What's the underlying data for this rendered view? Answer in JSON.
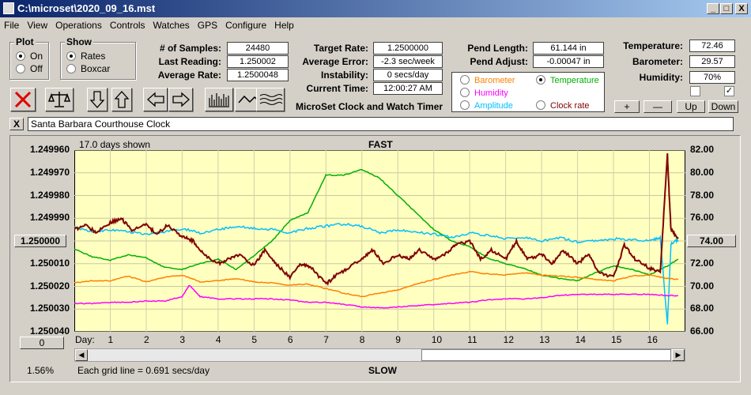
{
  "window": {
    "title": "C:\\microset\\2020_09_16.mst",
    "min": "_",
    "max": "□",
    "close": "X"
  },
  "menu": [
    "File",
    "View",
    "Operations",
    "Controls",
    "Watches",
    "GPS",
    "Configure",
    "Help"
  ],
  "plot_group": {
    "title": "Plot",
    "options": [
      "On",
      "Off"
    ],
    "selected": "On"
  },
  "show_group": {
    "title": "Show",
    "options": [
      "Rates",
      "Boxcar"
    ],
    "selected": "Rates"
  },
  "stats": {
    "samples_label": "# of Samples:",
    "samples": "24480",
    "last_label": "Last Reading:",
    "last": "1.250002",
    "avg_label": "Average Rate:",
    "avg": "1.2500048",
    "target_label": "Target Rate:",
    "target": "1.2500000",
    "avgerr_label": "Average Error:",
    "avgerr": "-2.3 sec/week",
    "instab_label": "Instability:",
    "instab": "0 secs/day",
    "time_label": "Current Time:",
    "time": "12:00:27 AM",
    "pendlen_label": "Pend Length:",
    "pendlen": "61.144 in",
    "pendadj_label": "Pend Adjust:",
    "pendadj": "-0.00047 in",
    "temp_label": "Temperature:",
    "temp": "72.46",
    "baro_label": "Barometer:",
    "baro": "29.57",
    "hum_label": "Humidity:",
    "hum": "70%"
  },
  "app_caption": "MicroSet Clock and Watch Timer",
  "sensors": {
    "barometer": "Barometer",
    "humidity": "Humidity",
    "amplitude": "Amplitude",
    "temperature": "Temperature",
    "clock_rate": "Clock rate",
    "selected": "Temperature"
  },
  "small_buttons": {
    "plus": "+",
    "minus": "—",
    "up": "Up",
    "down": "Down"
  },
  "checkboxes": [
    false,
    true
  ],
  "close_x": "X",
  "clock_name": "Santa Barbara Courthouse Clock",
  "colors": {
    "barometer": "#ff8000",
    "humidity": "#ff00ff",
    "amplitude": "#00c0ff",
    "temperature": "#00b000",
    "rate": "#800000",
    "plot_bg": "#ffffc0"
  },
  "chart_data": {
    "type": "line",
    "header_left": "17.0 days shown",
    "header_center": "FAST",
    "footer_left": "Each grid line = 0.691 secs/day",
    "footer_center": "SLOW",
    "footer_pct": "1.56%",
    "left_button": "1.250000",
    "right_button": "74.00",
    "zero_button": "0",
    "x_label": "Day:",
    "x_ticks": [
      "1",
      "2",
      "3",
      "4",
      "5",
      "6",
      "7",
      "8",
      "9",
      "10",
      "11",
      "12",
      "13",
      "14",
      "15",
      "16"
    ],
    "y_left_ticks": [
      "1.249960",
      "1.249970",
      "1.249980",
      "1.249990",
      "1.250000",
      "1.250010",
      "1.250020",
      "1.250030",
      "1.250040"
    ],
    "y_right_ticks": [
      "82.00",
      "80.00",
      "78.00",
      "76.00",
      "74.00",
      "72.00",
      "70.00",
      "68.00",
      "66.00"
    ],
    "xlim": [
      0,
      17
    ],
    "ylim_left": [
      1.25004,
      1.24996
    ],
    "ylim_right": [
      66,
      82
    ],
    "grid": true,
    "series": [
      {
        "key": "temperature",
        "axis": "right",
        "x": [
          0,
          0.5,
          1,
          1.5,
          2,
          2.5,
          3,
          3.5,
          4,
          4.5,
          5,
          5.5,
          6,
          6.5,
          7,
          7.5,
          8,
          8.5,
          9,
          9.5,
          10,
          10.5,
          11,
          11.5,
          12,
          12.5,
          13,
          13.5,
          14,
          14.5,
          15,
          15.5,
          16,
          16.5,
          16.8
        ],
        "y": [
          73.3,
          72.6,
          72.3,
          72.8,
          72.5,
          71.7,
          71.5,
          72.0,
          72.4,
          71.5,
          72.7,
          74.0,
          75.8,
          76.5,
          79.8,
          79.8,
          80.3,
          79.5,
          78.0,
          76.5,
          75.0,
          74.0,
          73.5,
          72.5,
          72.0,
          71.6,
          71.0,
          70.7,
          70.5,
          71.2,
          71.8,
          71.5,
          71.0,
          71.8,
          72.4
        ]
      },
      {
        "key": "amplitude",
        "axis": "right",
        "x": [
          0,
          0.5,
          1,
          1.5,
          2,
          2.5,
          3,
          3.5,
          4,
          4.5,
          5,
          5.5,
          6,
          6.5,
          7,
          7.5,
          8,
          8.5,
          9,
          9.5,
          10,
          10.5,
          11,
          11.5,
          12,
          12.5,
          13,
          13.5,
          14,
          14.5,
          15,
          15.5,
          16,
          16.3,
          16.5,
          16.6,
          16.8
        ],
        "y": [
          75.2,
          74.8,
          75.0,
          74.8,
          74.6,
          74.8,
          75.1,
          74.7,
          75.0,
          75.3,
          75.1,
          75.0,
          74.7,
          75.1,
          75.3,
          75.5,
          75.3,
          74.7,
          75.0,
          74.8,
          74.6,
          74.3,
          74.7,
          74.5,
          74.2,
          74.3,
          74.0,
          74.3,
          73.9,
          74.0,
          74.2,
          74.1,
          74.0,
          74.3,
          66.6,
          73.8,
          74.1
        ]
      },
      {
        "key": "barometer",
        "axis": "right",
        "x": [
          0,
          0.5,
          1,
          1.5,
          2,
          2.5,
          3,
          3.5,
          4,
          4.5,
          5,
          5.5,
          6,
          6.5,
          7,
          7.5,
          8,
          8.5,
          9,
          9.5,
          10,
          10.5,
          11,
          11.5,
          12,
          12.5,
          13,
          13.5,
          14,
          14.5,
          15,
          15.5,
          16,
          16.5,
          16.8
        ],
        "y": [
          70.3,
          70.5,
          70.5,
          70.9,
          70.4,
          70.8,
          71.0,
          70.4,
          70.5,
          70.7,
          70.4,
          70.3,
          70.1,
          70.2,
          69.8,
          69.4,
          69.1,
          69.4,
          69.7,
          70.2,
          70.6,
          71.0,
          71.3,
          71.1,
          71.0,
          71.2,
          71.0,
          70.9,
          70.8,
          70.6,
          70.5,
          70.9,
          71.0,
          70.7,
          70.6
        ]
      },
      {
        "key": "humidity",
        "axis": "right",
        "x": [
          0,
          0.5,
          1,
          1.5,
          2,
          2.5,
          3,
          3.2,
          3.5,
          4,
          4.5,
          5,
          5.5,
          6,
          6.5,
          7,
          7.5,
          8,
          8.5,
          9,
          9.5,
          10,
          10.5,
          11,
          11.5,
          12,
          12.5,
          13,
          13.5,
          14,
          14.5,
          15,
          15.5,
          16,
          16.5,
          16.8
        ],
        "y": [
          68.5,
          68.5,
          68.6,
          68.6,
          68.7,
          68.7,
          69.1,
          70.1,
          69.1,
          68.9,
          68.9,
          68.9,
          68.9,
          68.8,
          68.6,
          68.6,
          68.4,
          68.2,
          68.1,
          68.2,
          68.3,
          68.4,
          68.5,
          68.6,
          68.8,
          68.9,
          68.9,
          69.0,
          69.2,
          69.3,
          69.3,
          69.3,
          69.3,
          69.3,
          69.2,
          69.2
        ]
      },
      {
        "key": "rate",
        "axis": "left",
        "x": [
          0,
          0.3,
          0.6,
          1,
          1.3,
          1.6,
          2,
          2.3,
          2.6,
          3,
          3.3,
          3.6,
          4,
          4.3,
          4.6,
          5,
          5.3,
          5.6,
          6,
          6.3,
          6.6,
          7,
          7.3,
          7.6,
          8,
          8.3,
          8.6,
          9,
          9.3,
          9.6,
          10,
          10.3,
          10.6,
          11,
          11.3,
          11.6,
          12,
          12.3,
          12.6,
          13,
          13.3,
          13.6,
          14,
          14.3,
          14.6,
          15,
          15.3,
          15.6,
          16,
          16.3,
          16.5,
          16.55,
          16.6,
          16.8
        ],
        "y": [
          1.249995,
          1.249993,
          1.249996,
          1.249992,
          1.24999,
          1.249995,
          1.249993,
          1.249997,
          1.249993,
          1.249998,
          1.25,
          1.250006,
          1.25001,
          1.250008,
          1.250006,
          1.250011,
          1.250004,
          1.25001,
          1.250016,
          1.25001,
          1.250012,
          1.250019,
          1.250015,
          1.250012,
          1.250008,
          1.250004,
          1.25001,
          1.250006,
          1.250008,
          1.250004,
          1.250008,
          1.250006,
          1.250002,
          1.25,
          1.250008,
          1.250004,
          1.250008,
          1.25,
          1.250008,
          1.250006,
          1.25001,
          1.250004,
          1.25001,
          1.250006,
          1.250014,
          1.250016,
          1.250002,
          1.250008,
          1.250012,
          1.250014,
          1.249962,
          1.24998,
          1.249995,
          1.249999
        ]
      }
    ]
  }
}
